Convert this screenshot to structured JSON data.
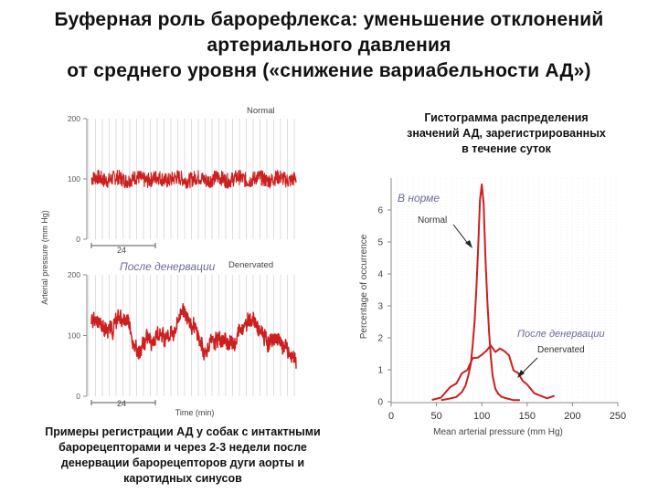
{
  "title": {
    "line1": "Буферная роль барорефлекса: уменьшение отклонений",
    "line2": "артериального давления",
    "line3": "от среднего уровня («снижение вариабельности АД»)"
  },
  "hist_caption": {
    "line1": "Гистограмма распределения",
    "line2": "значений АД, зарегистрированных",
    "line3": "в течение суток"
  },
  "bottom_caption": {
    "line1": "Примеры регистрации АД у собак с интактными",
    "line2": "барорецепторами и через 2-3 недели после",
    "line3": "денервации барорецепторов дуги аорты и",
    "line4": "каротидных синусов"
  },
  "colors": {
    "trace": "#cc1f1f",
    "axis": "#888888",
    "grid": "#c8c8c8",
    "russian_label": "#6a6a9a"
  },
  "chart_data": [
    {
      "type": "line",
      "ylabel": "Arterial pressure (mm Hg)",
      "xlabel": "Time (min)",
      "ylim": [
        0,
        200
      ],
      "panels": [
        {
          "label": "Normal",
          "label_ru": "",
          "yticks": [
            0,
            100,
            200
          ],
          "scale_bar": "24",
          "mean": 100,
          "fluctuation": 14
        },
        {
          "label": "Denervated",
          "label_ru": "После денервации",
          "yticks": [
            0,
            100,
            200
          ],
          "scale_bar": "24",
          "mean": 105,
          "fluctuation": 55
        }
      ]
    },
    {
      "type": "line",
      "xlabel": "Mean arterial pressure (mm Hg)",
      "ylabel": "Percentage of occurrence",
      "xlim": [
        0,
        250
      ],
      "ylim": [
        0,
        7
      ],
      "xticks": [
        0,
        50,
        100,
        150,
        200,
        250
      ],
      "yticks": [
        0,
        1,
        2,
        3,
        4,
        5,
        6
      ],
      "series": [
        {
          "name": "Normal",
          "name_ru": "В норме",
          "x": [
            55,
            65,
            72,
            78,
            82,
            85,
            88,
            90,
            92,
            94,
            96,
            98,
            100,
            102,
            104,
            106,
            108,
            110,
            112,
            115,
            118,
            122,
            128,
            135,
            142
          ],
          "y": [
            0.05,
            0.1,
            0.15,
            0.3,
            0.5,
            0.8,
            1.2,
            1.8,
            2.5,
            3.5,
            4.8,
            6.3,
            6.8,
            6.2,
            4.5,
            3.2,
            2.2,
            1.4,
            0.8,
            0.4,
            0.25,
            0.15,
            0.1,
            0.05,
            0.05
          ]
        },
        {
          "name": "Denervated",
          "name_ru": "После денервации",
          "x": [
            45,
            55,
            65,
            72,
            78,
            84,
            90,
            96,
            100,
            105,
            110,
            115,
            120,
            125,
            130,
            135,
            140,
            145,
            150,
            158,
            165,
            172,
            180
          ],
          "y": [
            0.1,
            0.2,
            0.35,
            0.6,
            0.85,
            1.05,
            1.25,
            1.4,
            1.5,
            1.6,
            1.65,
            1.5,
            1.7,
            1.55,
            1.4,
            1.1,
            0.8,
            0.6,
            0.45,
            0.35,
            0.25,
            0.15,
            0.1
          ]
        }
      ]
    }
  ]
}
